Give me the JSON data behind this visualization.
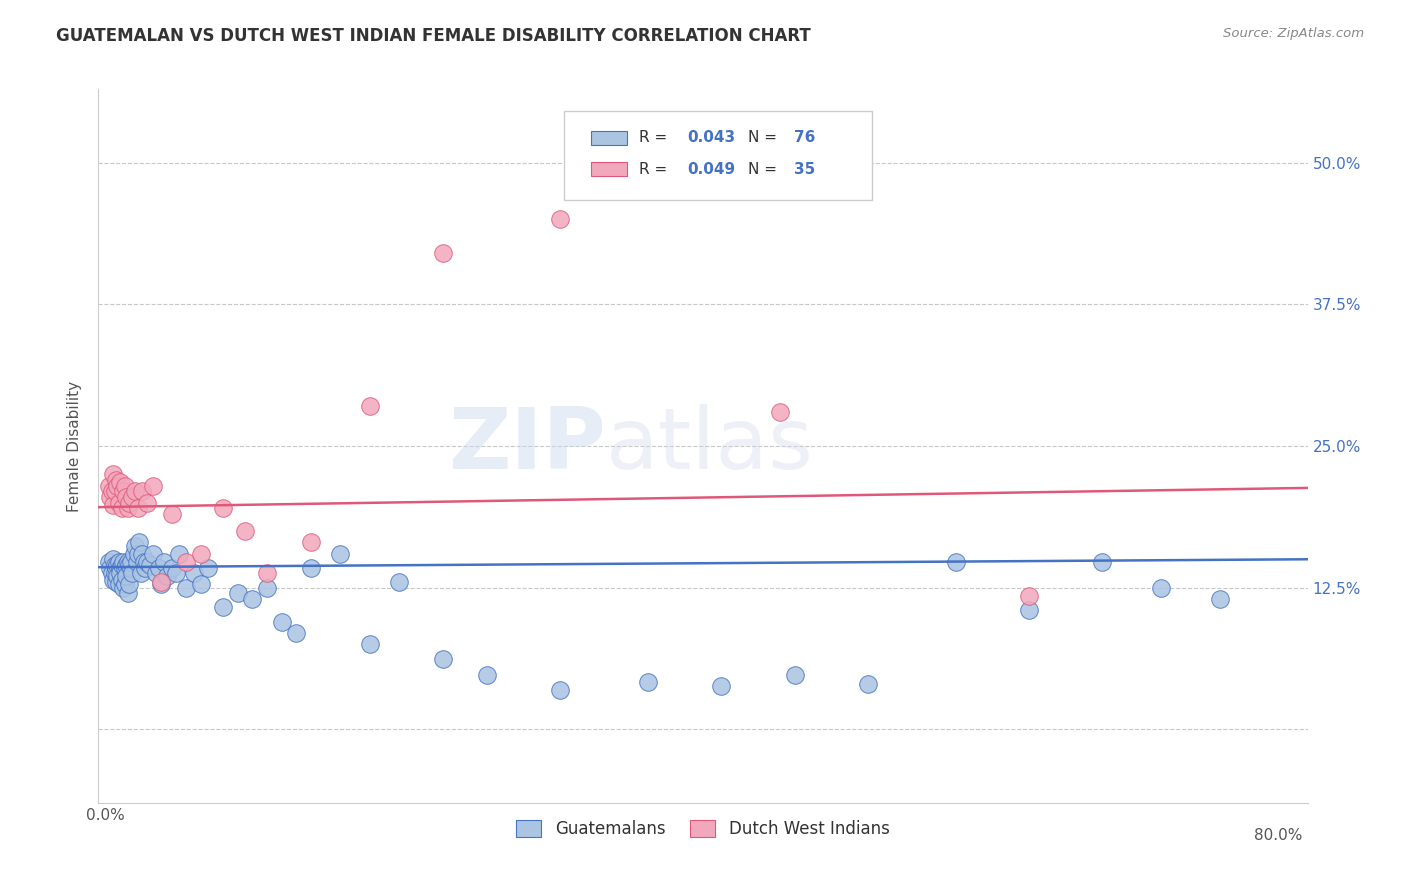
{
  "title": "GUATEMALAN VS DUTCH WEST INDIAN FEMALE DISABILITY CORRELATION CHART",
  "source": "Source: ZipAtlas.com",
  "ylabel": "Female Disability",
  "xlim": [
    -0.005,
    0.82
  ],
  "ylim": [
    -0.065,
    0.565
  ],
  "guatemalans_R": 0.043,
  "guatemalans_N": 76,
  "dutch_R": 0.049,
  "dutch_N": 35,
  "guatemalan_color": "#aac4e2",
  "dutch_color": "#f2a8bc",
  "trend_guatemalan_color": "#4472c4",
  "trend_dutch_color": "#e05878",
  "background_color": "#ffffff",
  "grid_color": "#c8c8c8",
  "watermark_zip": "ZIP",
  "watermark_atlas": "atlas",
  "guatemalans_x": [
    0.002,
    0.003,
    0.004,
    0.005,
    0.005,
    0.006,
    0.006,
    0.007,
    0.007,
    0.008,
    0.008,
    0.009,
    0.009,
    0.01,
    0.01,
    0.011,
    0.011,
    0.012,
    0.012,
    0.013,
    0.013,
    0.014,
    0.014,
    0.015,
    0.015,
    0.016,
    0.016,
    0.017,
    0.017,
    0.018,
    0.019,
    0.02,
    0.021,
    0.022,
    0.023,
    0.024,
    0.025,
    0.026,
    0.027,
    0.028,
    0.03,
    0.032,
    0.034,
    0.036,
    0.038,
    0.04,
    0.042,
    0.045,
    0.048,
    0.05,
    0.055,
    0.06,
    0.065,
    0.07,
    0.08,
    0.09,
    0.1,
    0.11,
    0.12,
    0.13,
    0.14,
    0.16,
    0.18,
    0.2,
    0.23,
    0.26,
    0.31,
    0.37,
    0.42,
    0.47,
    0.52,
    0.58,
    0.63,
    0.68,
    0.72,
    0.76
  ],
  "guatemalans_y": [
    0.148,
    0.142,
    0.138,
    0.15,
    0.132,
    0.145,
    0.138,
    0.142,
    0.13,
    0.145,
    0.135,
    0.148,
    0.128,
    0.142,
    0.138,
    0.145,
    0.132,
    0.148,
    0.125,
    0.142,
    0.128,
    0.145,
    0.135,
    0.148,
    0.12,
    0.145,
    0.128,
    0.142,
    0.148,
    0.138,
    0.155,
    0.162,
    0.148,
    0.155,
    0.165,
    0.138,
    0.155,
    0.148,
    0.142,
    0.148,
    0.145,
    0.155,
    0.138,
    0.142,
    0.128,
    0.148,
    0.135,
    0.142,
    0.138,
    0.155,
    0.125,
    0.138,
    0.128,
    0.142,
    0.108,
    0.12,
    0.115,
    0.125,
    0.095,
    0.085,
    0.142,
    0.155,
    0.075,
    0.13,
    0.062,
    0.048,
    0.035,
    0.042,
    0.038,
    0.048,
    0.04,
    0.148,
    0.105,
    0.148,
    0.125,
    0.115
  ],
  "dutch_x": [
    0.002,
    0.003,
    0.004,
    0.005,
    0.005,
    0.006,
    0.007,
    0.008,
    0.009,
    0.01,
    0.011,
    0.012,
    0.013,
    0.014,
    0.015,
    0.016,
    0.018,
    0.02,
    0.022,
    0.025,
    0.028,
    0.032,
    0.038,
    0.045,
    0.055,
    0.065,
    0.08,
    0.095,
    0.11,
    0.14,
    0.18,
    0.23,
    0.31,
    0.46,
    0.63
  ],
  "dutch_y": [
    0.215,
    0.205,
    0.21,
    0.198,
    0.225,
    0.21,
    0.22,
    0.215,
    0.2,
    0.218,
    0.195,
    0.21,
    0.215,
    0.205,
    0.195,
    0.2,
    0.205,
    0.21,
    0.195,
    0.21,
    0.2,
    0.215,
    0.13,
    0.19,
    0.148,
    0.155,
    0.195,
    0.175,
    0.138,
    0.165,
    0.285,
    0.42,
    0.45,
    0.28,
    0.118
  ],
  "ytick_positions": [
    0.0,
    0.125,
    0.25,
    0.375,
    0.5
  ],
  "ytick_labels": [
    "",
    "12.5%",
    "25.0%",
    "37.5%",
    "50.0%"
  ],
  "xtick_positions": [
    0.0,
    0.2,
    0.4,
    0.6,
    0.8
  ],
  "xtick_labels_left": [
    "0.0%",
    "",
    "",
    "",
    ""
  ],
  "xtick_labels_right": [
    "",
    "",
    "",
    "",
    "80.0%"
  ]
}
